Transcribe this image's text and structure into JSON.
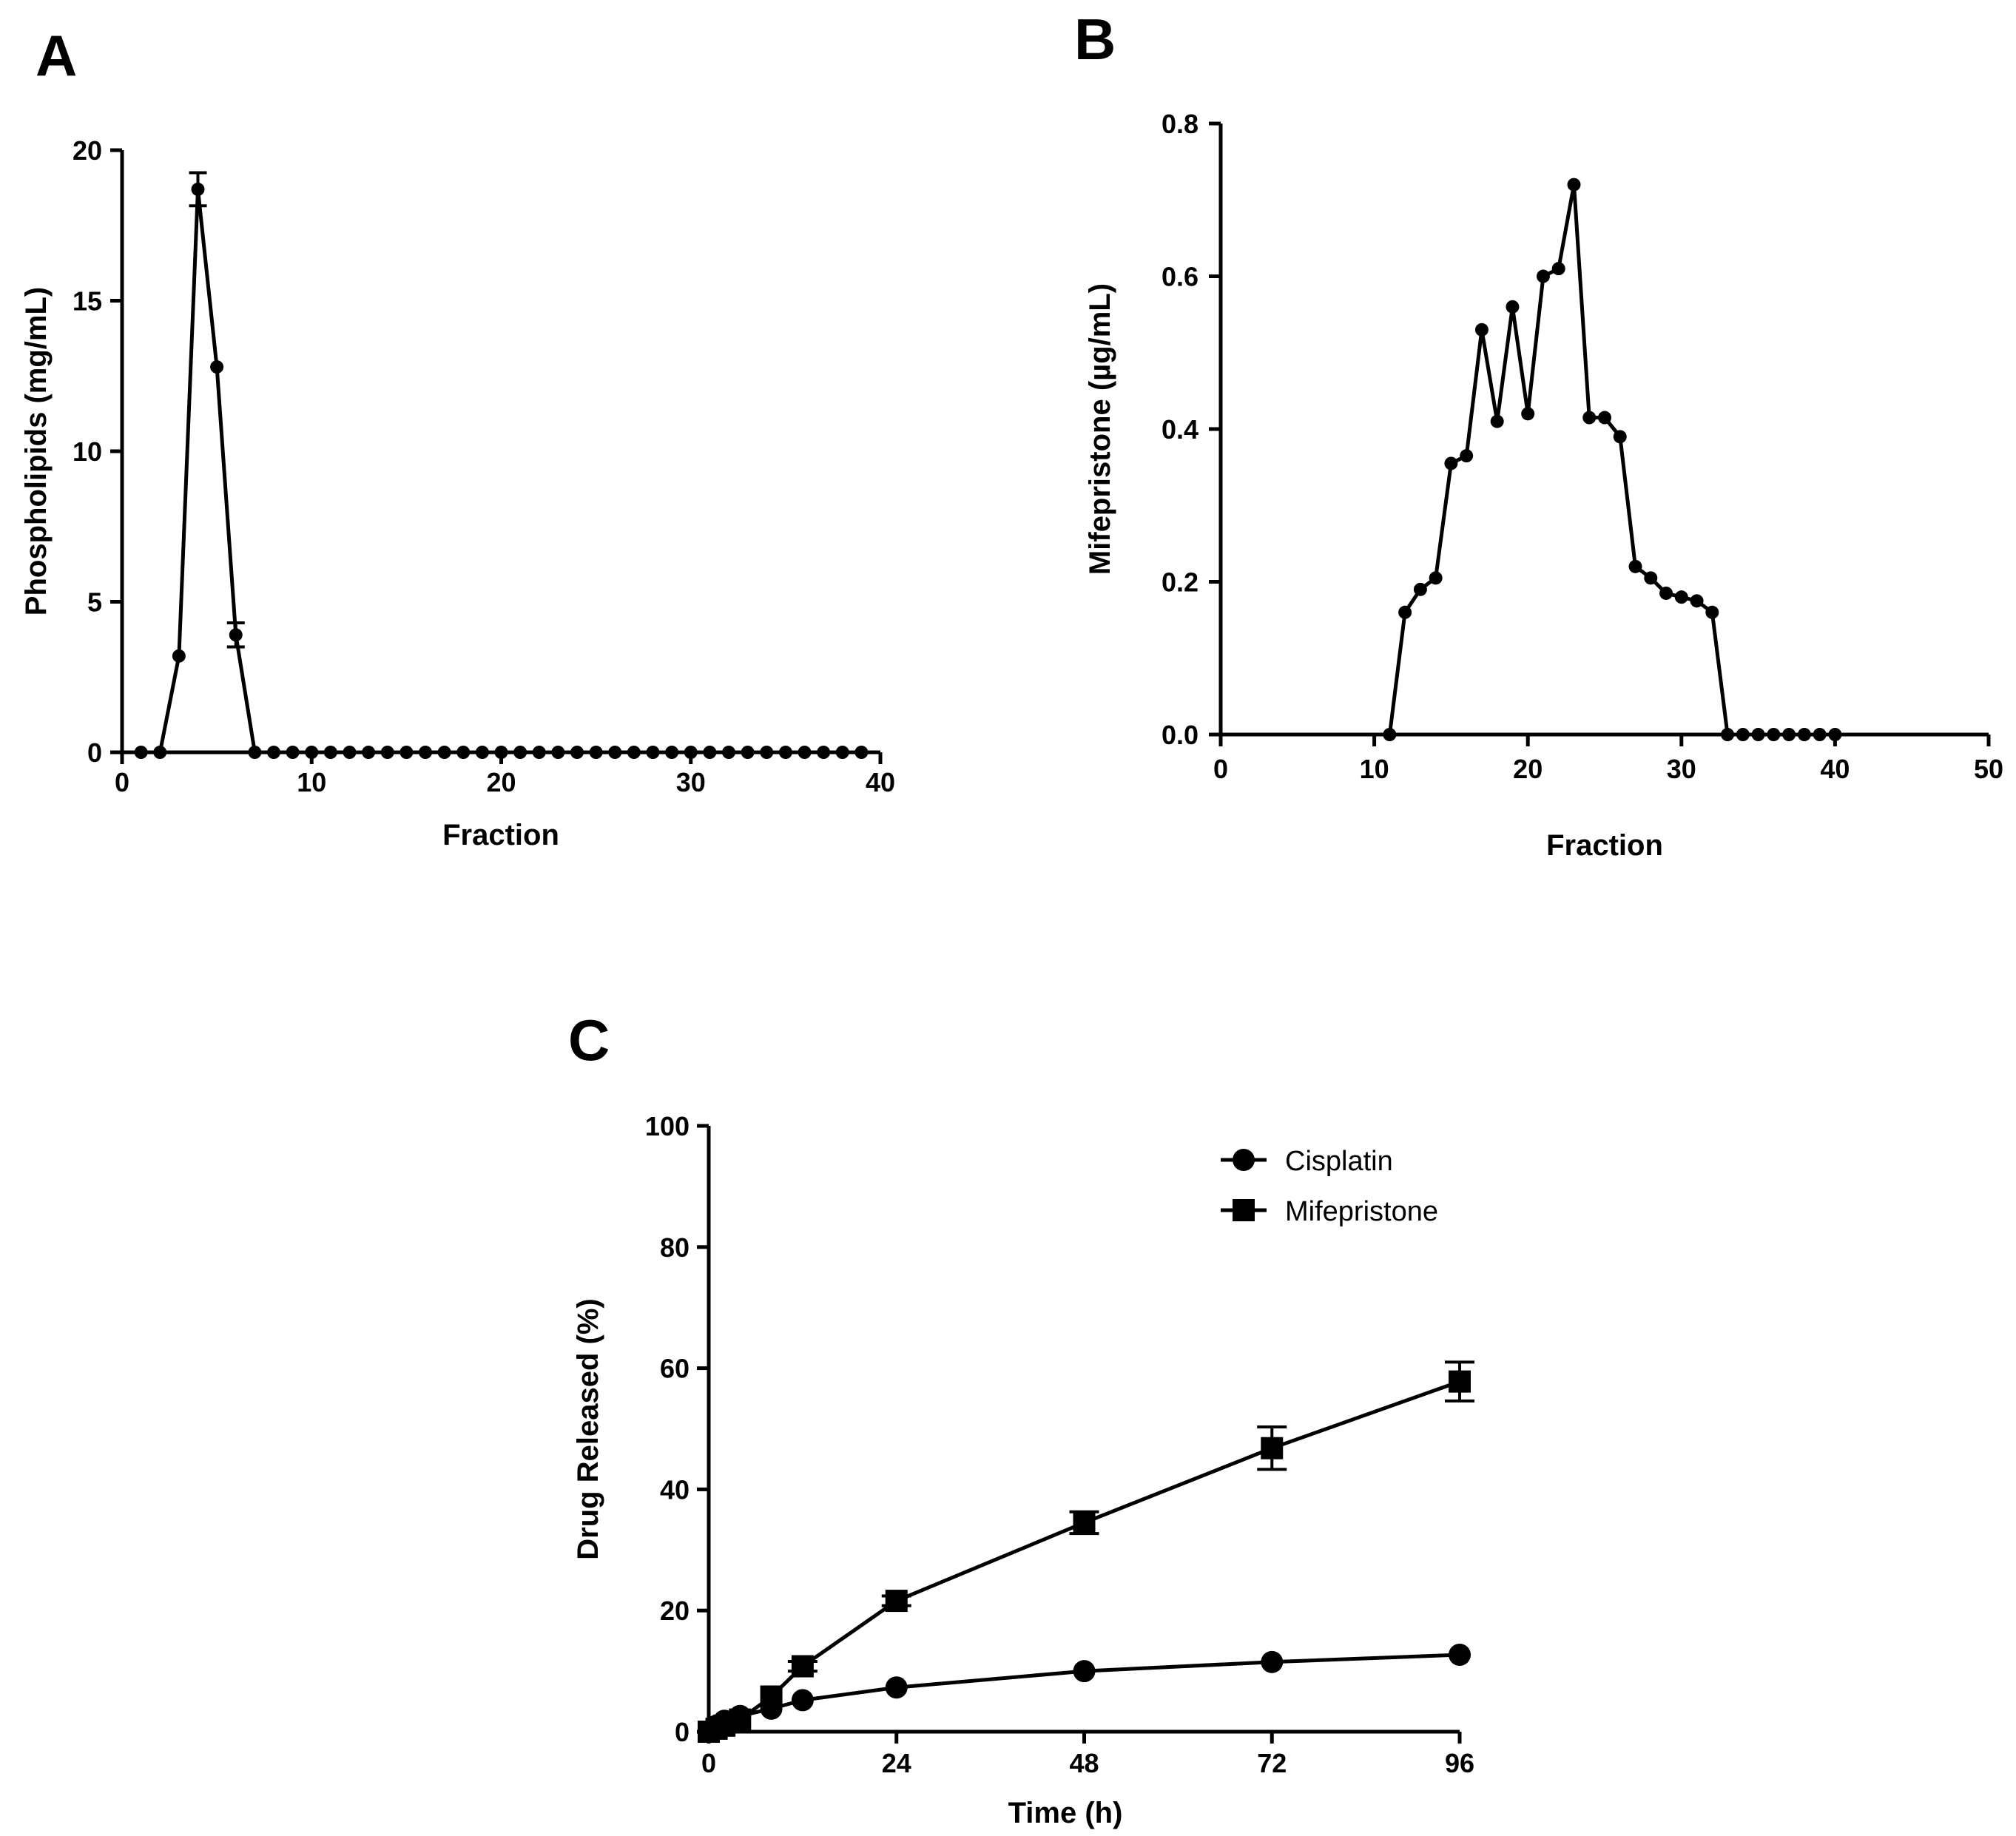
{
  "chart_data": [
    {
      "panel": "A",
      "type": "line",
      "xlabel": "Fraction",
      "ylabel": "Phospholipids (mg/mL)",
      "xlim": [
        0,
        40
      ],
      "ylim": [
        0,
        20
      ],
      "xticks": [
        "0",
        "10",
        "20",
        "30",
        "40"
      ],
      "yticks": [
        "0",
        "5",
        "10",
        "15",
        "20"
      ],
      "series": [
        {
          "name": "Phospholipids",
          "marker": "circle",
          "x": [
            1,
            2,
            3,
            4,
            5,
            6,
            7,
            8,
            9,
            10,
            11,
            12,
            13,
            14,
            15,
            16,
            17,
            18,
            19,
            20,
            21,
            22,
            23,
            24,
            25,
            26,
            27,
            28,
            29,
            30,
            31,
            32,
            33,
            34,
            35,
            36,
            37,
            38,
            39
          ],
          "y": [
            0,
            0,
            3.2,
            18.7,
            12.8,
            3.9,
            0,
            0,
            0,
            0,
            0,
            0,
            0,
            0,
            0,
            0,
            0,
            0,
            0,
            0,
            0,
            0,
            0,
            0,
            0,
            0,
            0,
            0,
            0,
            0,
            0,
            0,
            0,
            0,
            0,
            0,
            0,
            0,
            0
          ],
          "err": [
            0,
            0,
            0,
            0.55,
            0,
            0.4,
            0,
            0,
            0,
            0,
            0,
            0,
            0,
            0,
            0,
            0,
            0,
            0,
            0,
            0,
            0,
            0,
            0,
            0,
            0,
            0,
            0,
            0,
            0,
            0,
            0,
            0,
            0,
            0,
            0,
            0,
            0,
            0,
            0
          ]
        }
      ]
    },
    {
      "panel": "B",
      "type": "line",
      "xlabel": "Fraction",
      "ylabel": "Mifepristone (µg/mL)",
      "xlim": [
        0,
        50
      ],
      "ylim": [
        0,
        0.8
      ],
      "xticks": [
        "0",
        "10",
        "20",
        "30",
        "40",
        "50"
      ],
      "yticks": [
        "0.0",
        "0.2",
        "0.4",
        "0.6",
        "0.8"
      ],
      "series": [
        {
          "name": "Mifepristone",
          "marker": "circle",
          "x": [
            11,
            12,
            13,
            14,
            15,
            16,
            17,
            18,
            19,
            20,
            21,
            22,
            23,
            24,
            25,
            26,
            27,
            28,
            29,
            30,
            31,
            32,
            33,
            34,
            35,
            36,
            37,
            38,
            39,
            40
          ],
          "y": [
            0,
            0.16,
            0.19,
            0.205,
            0.355,
            0.365,
            0.53,
            0.41,
            0.56,
            0.42,
            0.6,
            0.61,
            0.72,
            0.415,
            0.415,
            0.39,
            0.22,
            0.205,
            0.185,
            0.18,
            0.175,
            0.16,
            0,
            0,
            0,
            0,
            0,
            0,
            0,
            0
          ],
          "err": []
        }
      ]
    },
    {
      "panel": "C",
      "type": "line",
      "xlabel": "Time (h)",
      "ylabel": "Drug Released (%)",
      "xlim": [
        0,
        96
      ],
      "ylim": [
        0,
        100
      ],
      "xticks": [
        "0",
        "24",
        "48",
        "72",
        "96"
      ],
      "yticks": [
        "0",
        "20",
        "40",
        "60",
        "80",
        "100"
      ],
      "legend_position": "top-right",
      "series": [
        {
          "name": "Cisplatin",
          "marker": "circle",
          "x": [
            0,
            1,
            2,
            4,
            8,
            12,
            24,
            48,
            72,
            96
          ],
          "y": [
            0,
            1.0,
            1.8,
            2.6,
            3.8,
            5.2,
            7.3,
            10.0,
            11.5,
            12.7
          ],
          "err": [
            0,
            0,
            0,
            0,
            0,
            0,
            0,
            0,
            0,
            0
          ]
        },
        {
          "name": "Mifepristone",
          "marker": "square",
          "x": [
            0,
            1,
            2,
            4,
            8,
            12,
            24,
            48,
            72,
            96
          ],
          "y": [
            0,
            0.5,
            1.0,
            2.0,
            5.8,
            10.8,
            21.6,
            34.5,
            46.8,
            57.8
          ],
          "err": [
            0,
            0,
            0,
            0,
            0,
            0.8,
            0.8,
            1.8,
            3.5,
            3.2
          ]
        }
      ]
    }
  ],
  "panels": {
    "A": "A",
    "B": "B",
    "C": "C"
  },
  "legend": {
    "item1": "Cisplatin",
    "item2": "Mifepristone"
  }
}
